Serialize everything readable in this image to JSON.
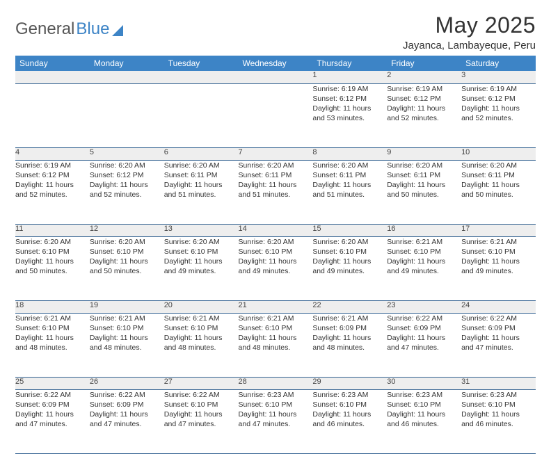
{
  "logo": {
    "part1": "General",
    "part2": "Blue"
  },
  "title": "May 2025",
  "location": "Jayanca, Lambayeque, Peru",
  "colors": {
    "header_bg": "#3d84c6",
    "header_text": "#ffffff",
    "daynum_bg": "#eeeeee",
    "row_divider": "#2f5f8f",
    "text": "#333333",
    "logo_gray": "#555555",
    "logo_blue": "#3d84c6",
    "page_bg": "#ffffff"
  },
  "typography": {
    "title_fontsize": 32,
    "location_fontsize": 15,
    "weekday_fontsize": 12,
    "daynum_fontsize": 11,
    "cell_fontsize": 10.5
  },
  "weekdays": [
    "Sunday",
    "Monday",
    "Tuesday",
    "Wednesday",
    "Thursday",
    "Friday",
    "Saturday"
  ],
  "weeks": [
    {
      "nums": [
        "",
        "",
        "",
        "",
        "1",
        "2",
        "3"
      ],
      "cells": [
        null,
        null,
        null,
        null,
        {
          "sunrise": "Sunrise: 6:19 AM",
          "sunset": "Sunset: 6:12 PM",
          "day1": "Daylight: 11 hours",
          "day2": "and 53 minutes."
        },
        {
          "sunrise": "Sunrise: 6:19 AM",
          "sunset": "Sunset: 6:12 PM",
          "day1": "Daylight: 11 hours",
          "day2": "and 52 minutes."
        },
        {
          "sunrise": "Sunrise: 6:19 AM",
          "sunset": "Sunset: 6:12 PM",
          "day1": "Daylight: 11 hours",
          "day2": "and 52 minutes."
        }
      ]
    },
    {
      "nums": [
        "4",
        "5",
        "6",
        "7",
        "8",
        "9",
        "10"
      ],
      "cells": [
        {
          "sunrise": "Sunrise: 6:19 AM",
          "sunset": "Sunset: 6:12 PM",
          "day1": "Daylight: 11 hours",
          "day2": "and 52 minutes."
        },
        {
          "sunrise": "Sunrise: 6:20 AM",
          "sunset": "Sunset: 6:12 PM",
          "day1": "Daylight: 11 hours",
          "day2": "and 52 minutes."
        },
        {
          "sunrise": "Sunrise: 6:20 AM",
          "sunset": "Sunset: 6:11 PM",
          "day1": "Daylight: 11 hours",
          "day2": "and 51 minutes."
        },
        {
          "sunrise": "Sunrise: 6:20 AM",
          "sunset": "Sunset: 6:11 PM",
          "day1": "Daylight: 11 hours",
          "day2": "and 51 minutes."
        },
        {
          "sunrise": "Sunrise: 6:20 AM",
          "sunset": "Sunset: 6:11 PM",
          "day1": "Daylight: 11 hours",
          "day2": "and 51 minutes."
        },
        {
          "sunrise": "Sunrise: 6:20 AM",
          "sunset": "Sunset: 6:11 PM",
          "day1": "Daylight: 11 hours",
          "day2": "and 50 minutes."
        },
        {
          "sunrise": "Sunrise: 6:20 AM",
          "sunset": "Sunset: 6:11 PM",
          "day1": "Daylight: 11 hours",
          "day2": "and 50 minutes."
        }
      ]
    },
    {
      "nums": [
        "11",
        "12",
        "13",
        "14",
        "15",
        "16",
        "17"
      ],
      "cells": [
        {
          "sunrise": "Sunrise: 6:20 AM",
          "sunset": "Sunset: 6:10 PM",
          "day1": "Daylight: 11 hours",
          "day2": "and 50 minutes."
        },
        {
          "sunrise": "Sunrise: 6:20 AM",
          "sunset": "Sunset: 6:10 PM",
          "day1": "Daylight: 11 hours",
          "day2": "and 50 minutes."
        },
        {
          "sunrise": "Sunrise: 6:20 AM",
          "sunset": "Sunset: 6:10 PM",
          "day1": "Daylight: 11 hours",
          "day2": "and 49 minutes."
        },
        {
          "sunrise": "Sunrise: 6:20 AM",
          "sunset": "Sunset: 6:10 PM",
          "day1": "Daylight: 11 hours",
          "day2": "and 49 minutes."
        },
        {
          "sunrise": "Sunrise: 6:20 AM",
          "sunset": "Sunset: 6:10 PM",
          "day1": "Daylight: 11 hours",
          "day2": "and 49 minutes."
        },
        {
          "sunrise": "Sunrise: 6:21 AM",
          "sunset": "Sunset: 6:10 PM",
          "day1": "Daylight: 11 hours",
          "day2": "and 49 minutes."
        },
        {
          "sunrise": "Sunrise: 6:21 AM",
          "sunset": "Sunset: 6:10 PM",
          "day1": "Daylight: 11 hours",
          "day2": "and 49 minutes."
        }
      ]
    },
    {
      "nums": [
        "18",
        "19",
        "20",
        "21",
        "22",
        "23",
        "24"
      ],
      "cells": [
        {
          "sunrise": "Sunrise: 6:21 AM",
          "sunset": "Sunset: 6:10 PM",
          "day1": "Daylight: 11 hours",
          "day2": "and 48 minutes."
        },
        {
          "sunrise": "Sunrise: 6:21 AM",
          "sunset": "Sunset: 6:10 PM",
          "day1": "Daylight: 11 hours",
          "day2": "and 48 minutes."
        },
        {
          "sunrise": "Sunrise: 6:21 AM",
          "sunset": "Sunset: 6:10 PM",
          "day1": "Daylight: 11 hours",
          "day2": "and 48 minutes."
        },
        {
          "sunrise": "Sunrise: 6:21 AM",
          "sunset": "Sunset: 6:10 PM",
          "day1": "Daylight: 11 hours",
          "day2": "and 48 minutes."
        },
        {
          "sunrise": "Sunrise: 6:21 AM",
          "sunset": "Sunset: 6:09 PM",
          "day1": "Daylight: 11 hours",
          "day2": "and 48 minutes."
        },
        {
          "sunrise": "Sunrise: 6:22 AM",
          "sunset": "Sunset: 6:09 PM",
          "day1": "Daylight: 11 hours",
          "day2": "and 47 minutes."
        },
        {
          "sunrise": "Sunrise: 6:22 AM",
          "sunset": "Sunset: 6:09 PM",
          "day1": "Daylight: 11 hours",
          "day2": "and 47 minutes."
        }
      ]
    },
    {
      "nums": [
        "25",
        "26",
        "27",
        "28",
        "29",
        "30",
        "31"
      ],
      "cells": [
        {
          "sunrise": "Sunrise: 6:22 AM",
          "sunset": "Sunset: 6:09 PM",
          "day1": "Daylight: 11 hours",
          "day2": "and 47 minutes."
        },
        {
          "sunrise": "Sunrise: 6:22 AM",
          "sunset": "Sunset: 6:09 PM",
          "day1": "Daylight: 11 hours",
          "day2": "and 47 minutes."
        },
        {
          "sunrise": "Sunrise: 6:22 AM",
          "sunset": "Sunset: 6:10 PM",
          "day1": "Daylight: 11 hours",
          "day2": "and 47 minutes."
        },
        {
          "sunrise": "Sunrise: 6:23 AM",
          "sunset": "Sunset: 6:10 PM",
          "day1": "Daylight: 11 hours",
          "day2": "and 47 minutes."
        },
        {
          "sunrise": "Sunrise: 6:23 AM",
          "sunset": "Sunset: 6:10 PM",
          "day1": "Daylight: 11 hours",
          "day2": "and 46 minutes."
        },
        {
          "sunrise": "Sunrise: 6:23 AM",
          "sunset": "Sunset: 6:10 PM",
          "day1": "Daylight: 11 hours",
          "day2": "and 46 minutes."
        },
        {
          "sunrise": "Sunrise: 6:23 AM",
          "sunset": "Sunset: 6:10 PM",
          "day1": "Daylight: 11 hours",
          "day2": "and 46 minutes."
        }
      ]
    }
  ]
}
